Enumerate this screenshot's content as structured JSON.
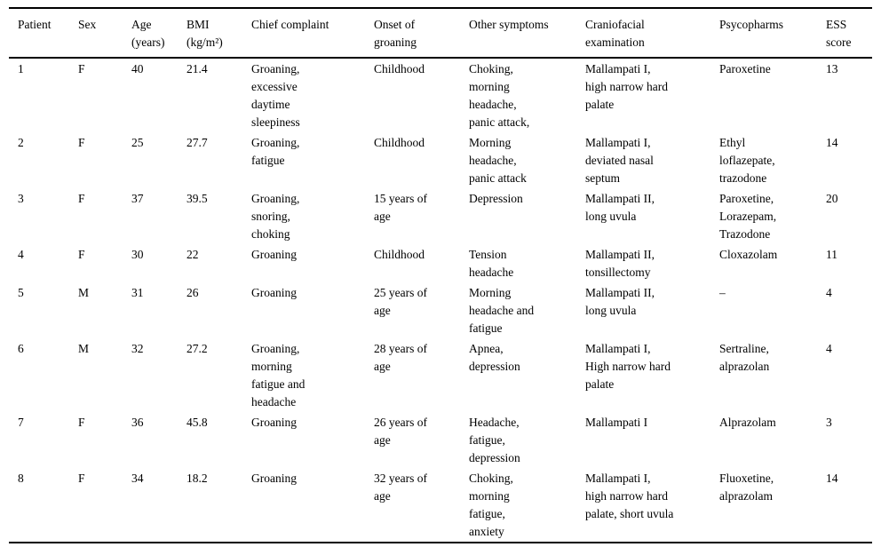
{
  "table": {
    "columns": [
      {
        "key": "patient",
        "label": [
          "Patient"
        ]
      },
      {
        "key": "sex",
        "label": [
          "Sex"
        ]
      },
      {
        "key": "age",
        "label": [
          "Age",
          "(years)"
        ]
      },
      {
        "key": "bmi",
        "label": [
          "BMI",
          "(kg/m²)"
        ]
      },
      {
        "key": "chief_complaint",
        "label": [
          "Chief complaint"
        ]
      },
      {
        "key": "onset",
        "label": [
          "Onset of",
          "groaning"
        ]
      },
      {
        "key": "other_symptoms",
        "label": [
          "Other symptoms"
        ]
      },
      {
        "key": "craniofacial",
        "label": [
          "Craniofacial",
          "examination"
        ]
      },
      {
        "key": "psycopharms",
        "label": [
          "Psycopharms"
        ]
      },
      {
        "key": "ess",
        "label": [
          "ESS",
          "score"
        ]
      }
    ],
    "rows": [
      {
        "patient": "1",
        "sex": "F",
        "age": "40",
        "bmi": "21.4",
        "chief_complaint": "Groaning, excessive daytime sleepiness",
        "onset": "Childhood",
        "other_symptoms": "Choking, morning headache, panic attack,",
        "craniofacial": "Mallampati I, high narrow hard palate",
        "psycopharms": "Paroxetine",
        "ess": "13"
      },
      {
        "patient": "2",
        "sex": "F",
        "age": "25",
        "bmi": "27.7",
        "chief_complaint": "Groaning, fatigue",
        "onset": "Childhood",
        "other_symptoms": "Morning headache, panic attack",
        "craniofacial": "Mallampati I, deviated nasal septum",
        "psycopharms": "Ethyl loflazepate, trazodone",
        "ess": "14"
      },
      {
        "patient": "3",
        "sex": "F",
        "age": "37",
        "bmi": "39.5",
        "chief_complaint": "Groaning, snoring, choking",
        "onset": "15 years of age",
        "other_symptoms": "Depression",
        "craniofacial": "Mallampati II, long uvula",
        "psycopharms": "Paroxetine, Lorazepam, Trazodone",
        "ess": "20"
      },
      {
        "patient": "4",
        "sex": "F",
        "age": "30",
        "bmi": "22",
        "chief_complaint": "Groaning",
        "onset": "Childhood",
        "other_symptoms": "Tension headache",
        "craniofacial": "Mallampati II, tonsillectomy",
        "psycopharms": "Cloxazolam",
        "ess": "11"
      },
      {
        "patient": "5",
        "sex": "M",
        "age": "31",
        "bmi": "26",
        "chief_complaint": "Groaning",
        "onset": "25 years of age",
        "other_symptoms": "Morning headache and fatigue",
        "craniofacial": "Mallampati II, long uvula",
        "psycopharms": "–",
        "ess": "4"
      },
      {
        "patient": "6",
        "sex": "M",
        "age": "32",
        "bmi": "27.2",
        "chief_complaint": "Groaning, morning fatigue and headache",
        "onset": "28 years of age",
        "other_symptoms": "Apnea, depression",
        "craniofacial": "Mallampati I, High narrow hard palate",
        "psycopharms": "Sertraline, alprazolan",
        "ess": "4"
      },
      {
        "patient": "7",
        "sex": "F",
        "age": "36",
        "bmi": "45.8",
        "chief_complaint": "Groaning",
        "onset": "26 years of age",
        "other_symptoms": "Headache, fatigue, depression",
        "craniofacial": "Mallampati I",
        "psycopharms": "Alprazolam",
        "ess": "3"
      },
      {
        "patient": "8",
        "sex": "F",
        "age": "34",
        "bmi": "18.2",
        "chief_complaint": "Groaning",
        "onset": "32 years of age",
        "other_symptoms": "Choking, morning fatigue, anxiety",
        "craniofacial": "Mallampati I, high narrow hard palate, short uvula",
        "psycopharms": "Fluoxetine, alprazolam",
        "ess": "14"
      }
    ]
  }
}
